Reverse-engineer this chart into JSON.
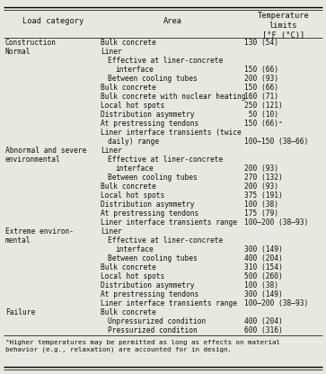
{
  "title_col1": "Load category",
  "title_col2": "Area",
  "title_col3": "Temperature\nlimits\n[°F (°C)]",
  "rows": [
    {
      "cat": "Construction",
      "area": "Bulk concrete",
      "ai": 0,
      "temp": "130 (54)"
    },
    {
      "cat": "Normal",
      "area": "Liner",
      "ai": 0,
      "temp": ""
    },
    {
      "cat": "",
      "area": "Effective at liner-concrete",
      "ai": 1,
      "temp": ""
    },
    {
      "cat": "",
      "area": "interface",
      "ai": 2,
      "temp": "150 (66)"
    },
    {
      "cat": "",
      "area": "Between cooling tubes",
      "ai": 1,
      "temp": "200 (93)"
    },
    {
      "cat": "",
      "area": "Bulk concrete",
      "ai": 0,
      "temp": "150 (66)"
    },
    {
      "cat": "",
      "area": "Bulk concrete with nuclear heating",
      "ai": 0,
      "temp": "160 (71)"
    },
    {
      "cat": "",
      "area": "Local hot spots",
      "ai": 0,
      "temp": "250 (121)"
    },
    {
      "cat": "",
      "area": "Distribution asymmetry",
      "ai": 0,
      "temp": " 50 (10)"
    },
    {
      "cat": "",
      "area": "At prestressing tendons",
      "ai": 0,
      "temp": "150 (66)ᵃ"
    },
    {
      "cat": "",
      "area": "Liner interface transients (twice",
      "ai": 0,
      "temp": ""
    },
    {
      "cat": "",
      "area": "daily) range",
      "ai": 1,
      "temp": "100–150 (38–66)"
    },
    {
      "cat": "Abnormal and severe",
      "area": "Liner",
      "ai": 0,
      "temp": ""
    },
    {
      "cat": "environmental",
      "area": "Effective at liner-concrete",
      "ai": 1,
      "temp": ""
    },
    {
      "cat": "",
      "area": "interface",
      "ai": 2,
      "temp": "200 (93)"
    },
    {
      "cat": "",
      "area": "Between cooling tubes",
      "ai": 1,
      "temp": "270 (132)"
    },
    {
      "cat": "",
      "area": "Bulk concrete",
      "ai": 0,
      "temp": "200 (93)"
    },
    {
      "cat": "",
      "area": "Local hot spots",
      "ai": 0,
      "temp": "375 (191)"
    },
    {
      "cat": "",
      "area": "Distribution asymmetry",
      "ai": 0,
      "temp": "100 (38)"
    },
    {
      "cat": "",
      "area": "At prestressing tendons",
      "ai": 0,
      "temp": "175 (79)"
    },
    {
      "cat": "",
      "area": "Liner interface transients range",
      "ai": 0,
      "temp": "100–200 (38–93)"
    },
    {
      "cat": "Extreme environ-",
      "area": "Liner",
      "ai": 0,
      "temp": ""
    },
    {
      "cat": "mental",
      "area": "Effective at liner-concrete",
      "ai": 1,
      "temp": ""
    },
    {
      "cat": "",
      "area": "interface",
      "ai": 2,
      "temp": "300 (149)"
    },
    {
      "cat": "",
      "area": "Between cooling tubes",
      "ai": 1,
      "temp": "400 (204)"
    },
    {
      "cat": "",
      "area": "Bulk concrete",
      "ai": 0,
      "temp": "310 (154)"
    },
    {
      "cat": "",
      "area": "Local hot spots",
      "ai": 0,
      "temp": "500 (260)"
    },
    {
      "cat": "",
      "area": "Distribution asymmetry",
      "ai": 0,
      "temp": "100 (38)"
    },
    {
      "cat": "",
      "area": "At prestressing tendons",
      "ai": 0,
      "temp": "300 (149)"
    },
    {
      "cat": "",
      "area": "Liner interface transients range",
      "ai": 0,
      "temp": "100–200 (38–93)"
    },
    {
      "cat": "Failure",
      "area": "Bulk concrete",
      "ai": 0,
      "temp": ""
    },
    {
      "cat": "",
      "area": "Unpressurized condition",
      "ai": 1,
      "temp": "400 (204)"
    },
    {
      "cat": "",
      "area": "Pressurized condition",
      "ai": 1,
      "temp": "600 (316)"
    }
  ],
  "footnote_a": "ᵃHigher temperatures may be permitted as long as effects on material",
  "footnote_b": "behavior (e.g., relaxation) are accounted for in design.",
  "bg_color": "#e8e8e0",
  "text_color": "#111111"
}
